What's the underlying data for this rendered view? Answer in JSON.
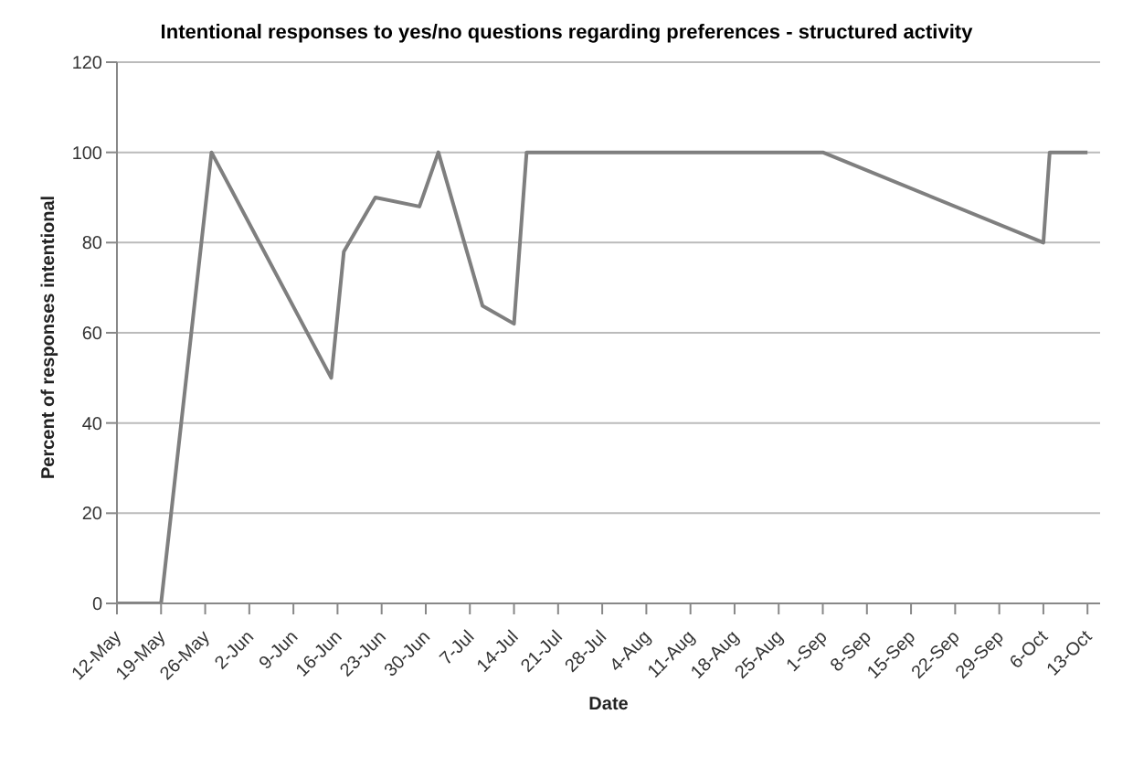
{
  "chart_data": {
    "type": "line",
    "title": "Intentional responses to yes/no questions regarding preferences - structured activity",
    "xlabel": "Date",
    "ylabel": "Percent of responses intentional",
    "x": [
      "--05-12",
      "--05-19",
      "--05-27",
      "--06-15",
      "--06-17",
      "--06-22",
      "--06-29",
      "--07-02",
      "--07-09",
      "--07-14",
      "--07-16",
      "--09-01",
      "--10-06",
      "--10-07",
      "--10-13"
    ],
    "series": [
      {
        "color": "#7f7f7f",
        "values": [
          0,
          0,
          100,
          50,
          78,
          90,
          88,
          100,
          66,
          62,
          100,
          100,
          80,
          100,
          100
        ]
      }
    ],
    "xlim": [
      "--05-12",
      "--10-15"
    ],
    "xticks": [
      {
        "value": "--05-12",
        "label": "12-May"
      },
      {
        "value": "--05-19",
        "label": "19-May"
      },
      {
        "value": "--05-26",
        "label": "26-May"
      },
      {
        "value": "--06-02",
        "label": "2-Jun"
      },
      {
        "value": "--06-09",
        "label": "9-Jun"
      },
      {
        "value": "--06-16",
        "label": "16-Jun"
      },
      {
        "value": "--06-23",
        "label": "23-Jun"
      },
      {
        "value": "--06-30",
        "label": "30-Jun"
      },
      {
        "value": "--07-07",
        "label": "7-Jul"
      },
      {
        "value": "--07-14",
        "label": "14-Jul"
      },
      {
        "value": "--07-21",
        "label": "21-Jul"
      },
      {
        "value": "--07-28",
        "label": "28-Jul"
      },
      {
        "value": "--08-04",
        "label": "4-Aug"
      },
      {
        "value": "--08-11",
        "label": "11-Aug"
      },
      {
        "value": "--08-18",
        "label": "18-Aug"
      },
      {
        "value": "--08-25",
        "label": "25-Aug"
      },
      {
        "value": "--09-01",
        "label": "1-Sep"
      },
      {
        "value": "--09-08",
        "label": "8-Sep"
      },
      {
        "value": "--09-15",
        "label": "15-Sep"
      },
      {
        "value": "--09-22",
        "label": "22-Sep"
      },
      {
        "value": "--09-29",
        "label": "29-Sep"
      },
      {
        "value": "--10-06",
        "label": "6-Oct"
      },
      {
        "value": "--10-13",
        "label": "13-Oct"
      }
    ],
    "ylim": [
      0,
      120
    ],
    "yticks": [
      0,
      20,
      40,
      60,
      80,
      100,
      120
    ],
    "grid": "y",
    "legend": false,
    "marker": "none",
    "line_style": "solid"
  }
}
